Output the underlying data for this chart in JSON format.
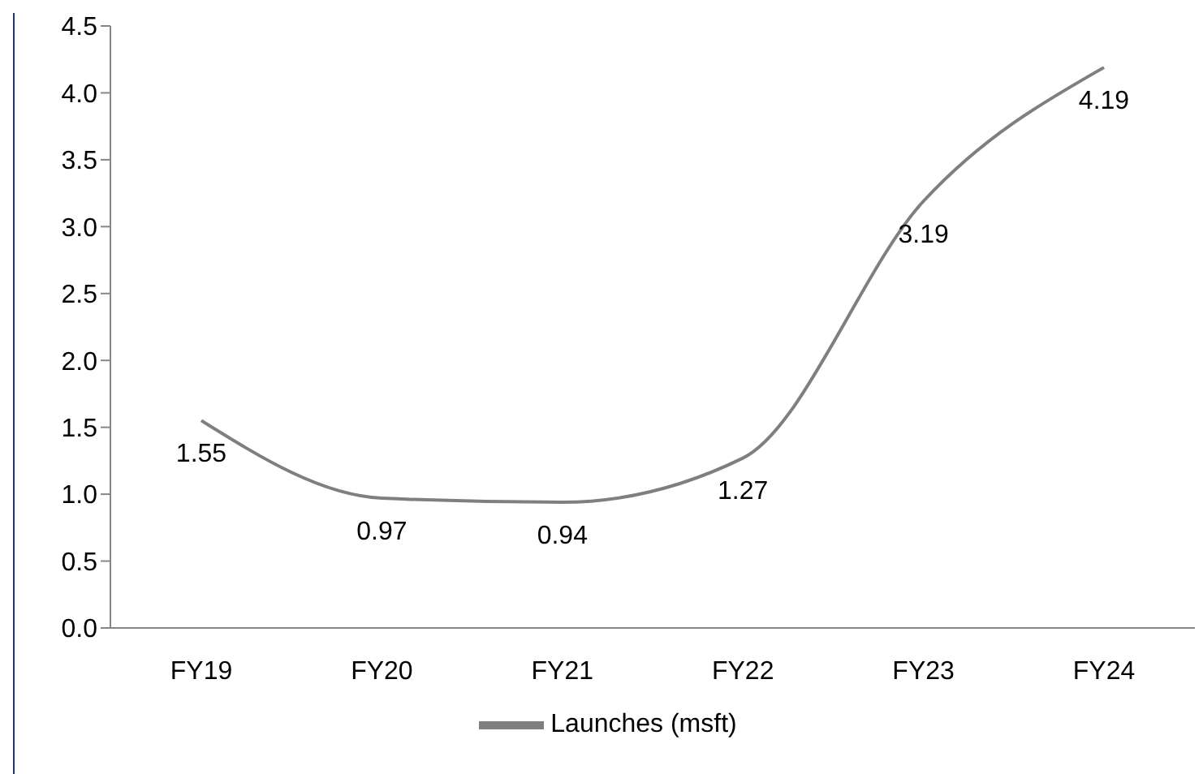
{
  "chart_data": {
    "type": "line",
    "categories": [
      "FY19",
      "FY20",
      "FY21",
      "FY22",
      "FY23",
      "FY24"
    ],
    "series": [
      {
        "name": "Launches (msft)",
        "color": "#7f7f7f",
        "values": [
          1.55,
          0.97,
          0.94,
          1.27,
          3.19,
          4.19
        ]
      }
    ],
    "ylim": [
      0,
      4.5
    ],
    "yticks": [
      {
        "value": 0,
        "label": "0.0"
      },
      0.5,
      {
        "value": 1,
        "label": "1.0"
      },
      1.5,
      {
        "value": 2,
        "label": "2.0"
      },
      2.5,
      {
        "value": 3,
        "label": "3.0"
      },
      3.5,
      {
        "value": 4,
        "label": "4.0"
      },
      4.5
    ],
    "data_labels": true,
    "grid": false,
    "legend": "bottom",
    "marker": "none",
    "line_style": "solid"
  }
}
